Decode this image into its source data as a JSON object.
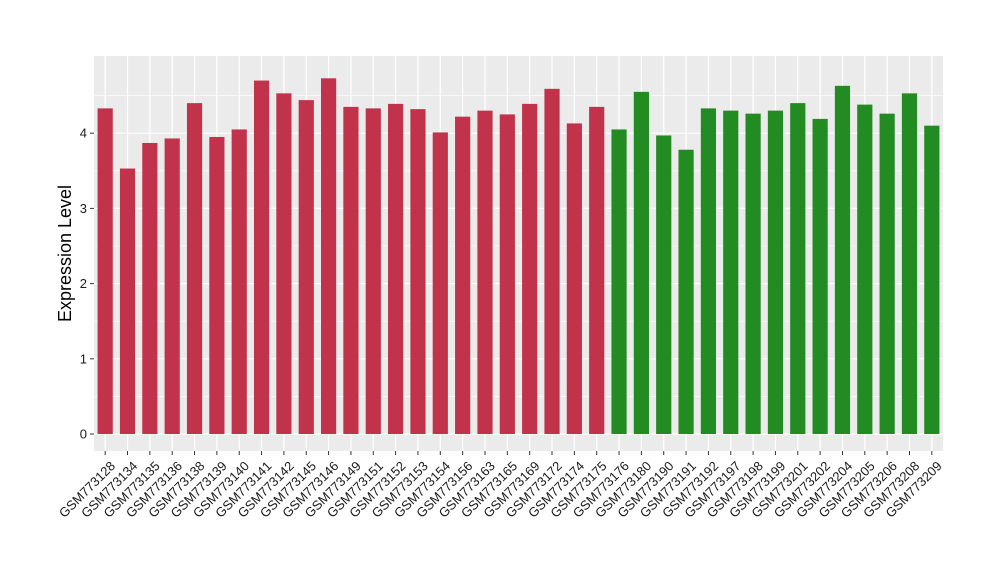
{
  "chart_data": {
    "type": "bar",
    "title": "",
    "xlabel": "",
    "ylabel": "Expression Level",
    "ylim": [
      0,
      5
    ],
    "yticks": [
      0,
      1,
      2,
      3,
      4
    ],
    "grid": true,
    "legend": "none",
    "categories": [
      "GSM773128",
      "GSM773134",
      "GSM773135",
      "GSM773136",
      "GSM773138",
      "GSM773139",
      "GSM773140",
      "GSM773141",
      "GSM773142",
      "GSM773145",
      "GSM773146",
      "GSM773149",
      "GSM773151",
      "GSM773152",
      "GSM773153",
      "GSM773154",
      "GSM773156",
      "GSM773163",
      "GSM773165",
      "GSM773169",
      "GSM773172",
      "GSM773174",
      "GSM773175",
      "GSM773176",
      "GSM773180",
      "GSM773190",
      "GSM773191",
      "GSM773192",
      "GSM773197",
      "GSM773198",
      "GSM773199",
      "GSM773201",
      "GSM773202",
      "GSM773204",
      "GSM773205",
      "GSM773206",
      "GSM773208",
      "GSM773209"
    ],
    "values": [
      4.33,
      3.53,
      3.87,
      3.93,
      4.4,
      3.95,
      4.05,
      4.7,
      4.53,
      4.44,
      4.73,
      4.35,
      4.33,
      4.39,
      4.32,
      4.01,
      4.22,
      4.3,
      4.25,
      4.39,
      4.59,
      4.13,
      4.35,
      4.05,
      4.55,
      3.97,
      3.78,
      4.33,
      4.3,
      4.26,
      4.3,
      4.4,
      4.19,
      4.63,
      4.38,
      4.26,
      4.53,
      4.1
    ],
    "groups": [
      0,
      0,
      0,
      0,
      0,
      0,
      0,
      0,
      0,
      0,
      0,
      0,
      0,
      0,
      0,
      0,
      0,
      0,
      0,
      0,
      0,
      0,
      0,
      1,
      1,
      1,
      1,
      1,
      1,
      1,
      1,
      1,
      1,
      1,
      1,
      1,
      1,
      1
    ],
    "colors": [
      "#c1334a",
      "#228b22"
    ],
    "panel_background": "#ebebeb",
    "grid_color": "#ffffff"
  }
}
